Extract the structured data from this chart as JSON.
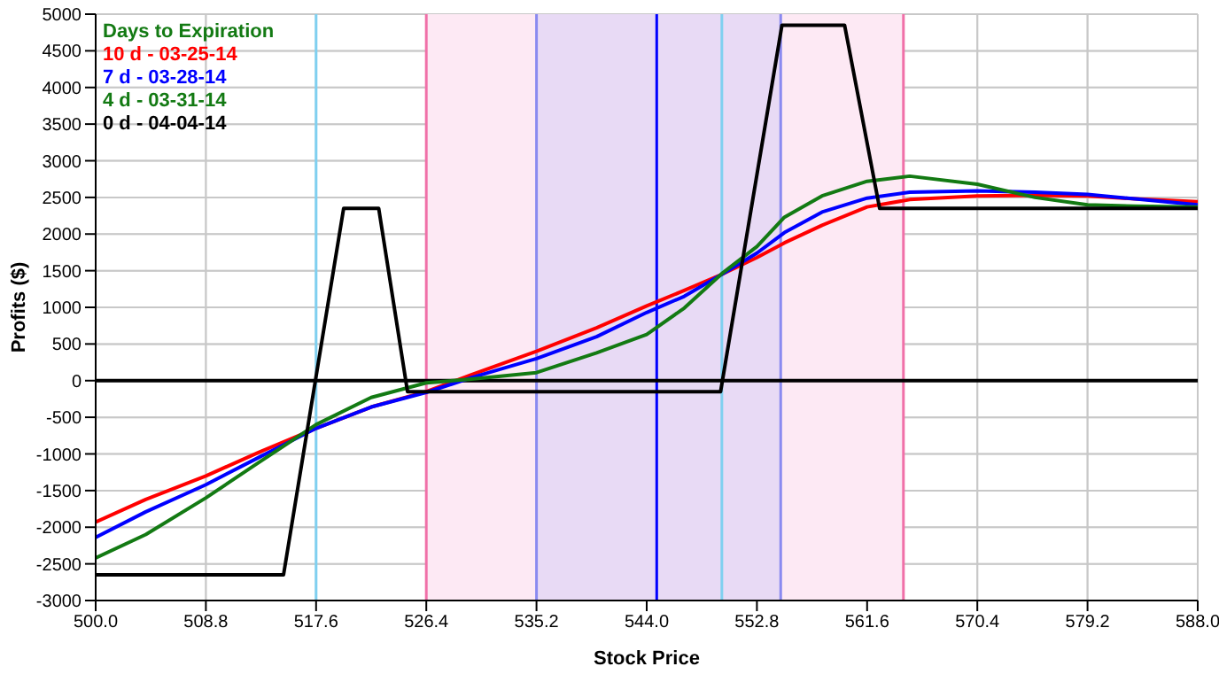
{
  "chart_data": {
    "type": "line",
    "xlabel": "Stock Price",
    "ylabel": "Profits ($)",
    "legend_title": "Days to Expiration",
    "legend": "top left",
    "grid": true,
    "marker": "none",
    "line_style": "solid",
    "xlim": [
      500,
      588
    ],
    "xticks": [
      {
        "value": 500,
        "label": "500.0"
      },
      {
        "value": 508.8,
        "label": "508.8"
      },
      {
        "value": 517.6,
        "label": "517.6"
      },
      {
        "value": 526.4,
        "label": "526.4"
      },
      {
        "value": 535.2,
        "label": "535.2"
      },
      {
        "value": 544,
        "label": "544.0"
      },
      {
        "value": 552.8,
        "label": "552.8"
      },
      {
        "value": 561.6,
        "label": "561.6"
      },
      {
        "value": 570.4,
        "label": "570.4"
      },
      {
        "value": 579.2,
        "label": "579.2"
      },
      {
        "value": 588,
        "label": "588.0"
      }
    ],
    "ylim": [
      -3000,
      5000
    ],
    "yticks": [
      -3000,
      -2500,
      -2000,
      -1500,
      -1000,
      -500,
      0,
      500,
      1000,
      1500,
      2000,
      2500,
      3000,
      3500,
      4000,
      4500,
      5000
    ],
    "x": [
      500,
      504,
      508.8,
      513,
      517.6,
      522,
      526.4,
      530,
      535.2,
      540,
      544,
      547,
      550,
      552.8,
      555,
      558,
      561.6,
      565,
      570.4,
      575,
      579.2,
      583,
      588
    ],
    "series": [
      {
        "name": "10 d - 03-25-14",
        "color": "#ff0000",
        "values": [
          -1930,
          -1620,
          -1300,
          -980,
          -650,
          -360,
          -150,
          80,
          400,
          720,
          1020,
          1230,
          1450,
          1680,
          1880,
          2120,
          2370,
          2470,
          2520,
          2530,
          2520,
          2480,
          2440
        ]
      },
      {
        "name": "7 d - 03-28-14",
        "color": "#0000ff",
        "values": [
          -2140,
          -1790,
          -1420,
          -1050,
          -650,
          -360,
          -160,
          40,
          300,
          600,
          930,
          1150,
          1450,
          1740,
          2020,
          2300,
          2490,
          2570,
          2590,
          2570,
          2540,
          2480,
          2400
        ]
      },
      {
        "name": "4 d - 03-31-14",
        "color": "#137a13",
        "values": [
          -2420,
          -2100,
          -1600,
          -1120,
          -600,
          -230,
          -30,
          20,
          110,
          380,
          630,
          990,
          1460,
          1830,
          2230,
          2520,
          2720,
          2790,
          2680,
          2500,
          2400,
          2380,
          2370
        ]
      },
      {
        "name": "0 d - 04-04-14",
        "color": "#000000",
        "x": [
          500,
          515,
          519.8,
          522.6,
          524.9,
          549.9,
          554.8,
          559.8,
          562.6,
          588
        ],
        "values": [
          -2650,
          -2650,
          2350,
          2350,
          -150,
          -150,
          4850,
          4850,
          2350,
          2350
        ]
      }
    ],
    "bands": [
      {
        "axis": "x",
        "from": 526.4,
        "to": 564.5,
        "color": "#fde9f4"
      },
      {
        "axis": "x",
        "from": 535.2,
        "to": 554.7,
        "color": "#e8daf5"
      }
    ],
    "ref_lines": [
      {
        "axis": "x",
        "value": 526.4,
        "color": "#f070a8"
      },
      {
        "axis": "x",
        "value": 564.5,
        "color": "#f070a8"
      },
      {
        "axis": "x",
        "value": 535.2,
        "color": "#8a8af0"
      },
      {
        "axis": "x",
        "value": 554.7,
        "color": "#8a8af0"
      },
      {
        "axis": "x",
        "value": 517.6,
        "color": "#7fd0f0"
      },
      {
        "axis": "x",
        "value": 550,
        "color": "#7fd0f0"
      },
      {
        "axis": "x",
        "value": 544.8,
        "color": "#0000ff"
      },
      {
        "axis": "y",
        "value": 0,
        "color": "#000000"
      }
    ]
  }
}
